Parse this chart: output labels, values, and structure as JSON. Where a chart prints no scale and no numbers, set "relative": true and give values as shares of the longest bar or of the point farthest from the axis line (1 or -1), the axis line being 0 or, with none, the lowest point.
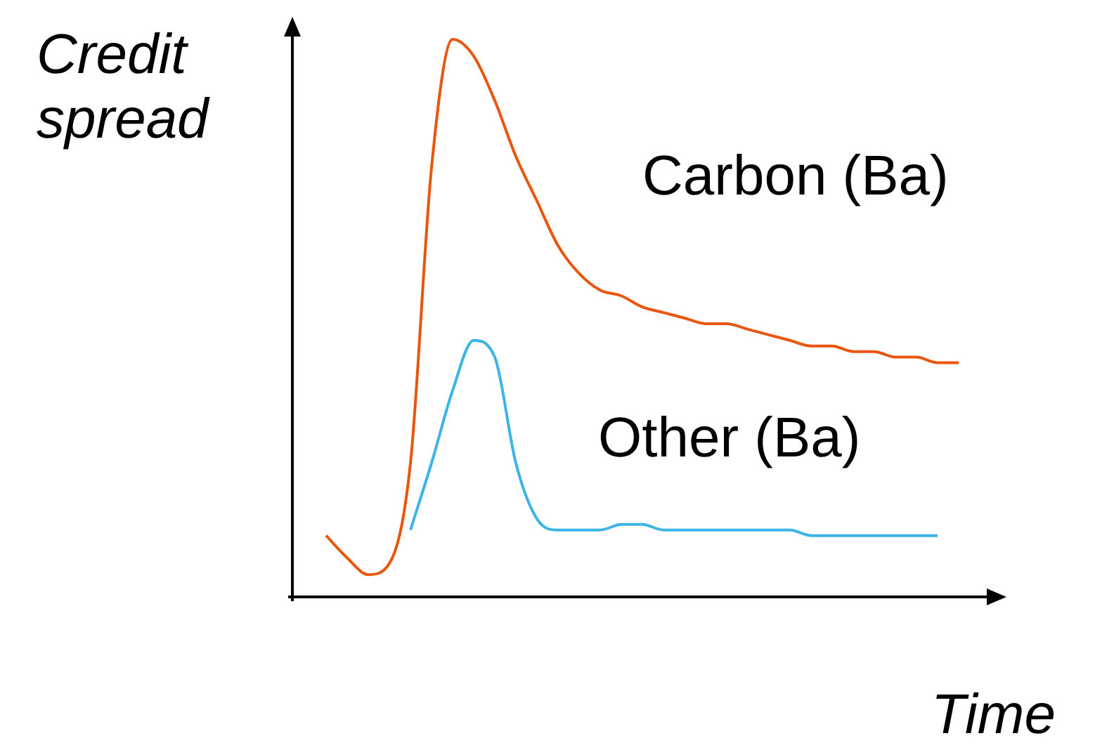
{
  "chart_data": {
    "type": "line",
    "relative": true,
    "xlabel": "Time",
    "ylabel": "Credit spread",
    "marker": "none",
    "legend": false,
    "categories": [
      null,
      null,
      null,
      null,
      null,
      null,
      null,
      null,
      null,
      null,
      null,
      null,
      null,
      null,
      null,
      null,
      null,
      null,
      null,
      null,
      null,
      null,
      null,
      null,
      null,
      null,
      null,
      null,
      null,
      null,
      null
    ],
    "series": [
      {
        "name": "Carbon (Ba)",
        "color": "#e8560f",
        "values": [
          0.11,
          0.07,
          0.04,
          0.06,
          0.24,
          0.77,
          1.0,
          0.97,
          0.89,
          0.79,
          0.71,
          0.63,
          0.58,
          0.55,
          0.54,
          0.52,
          0.51,
          0.5,
          0.49,
          0.49,
          0.48,
          0.47,
          0.46,
          0.45,
          0.45,
          0.44,
          0.44,
          0.43,
          0.43,
          0.42,
          0.42
        ]
      },
      {
        "name": "Other (Ba)",
        "color": "#3cb4e6",
        "values": [
          null,
          null,
          null,
          null,
          0.12,
          0.24,
          0.37,
          0.46,
          0.43,
          0.24,
          0.14,
          0.12,
          0.12,
          0.12,
          0.13,
          0.13,
          0.12,
          0.12,
          0.12,
          0.12,
          0.12,
          0.12,
          0.12,
          0.11,
          0.11,
          0.11,
          0.11,
          0.11,
          0.11,
          0.11,
          null
        ]
      }
    ]
  }
}
